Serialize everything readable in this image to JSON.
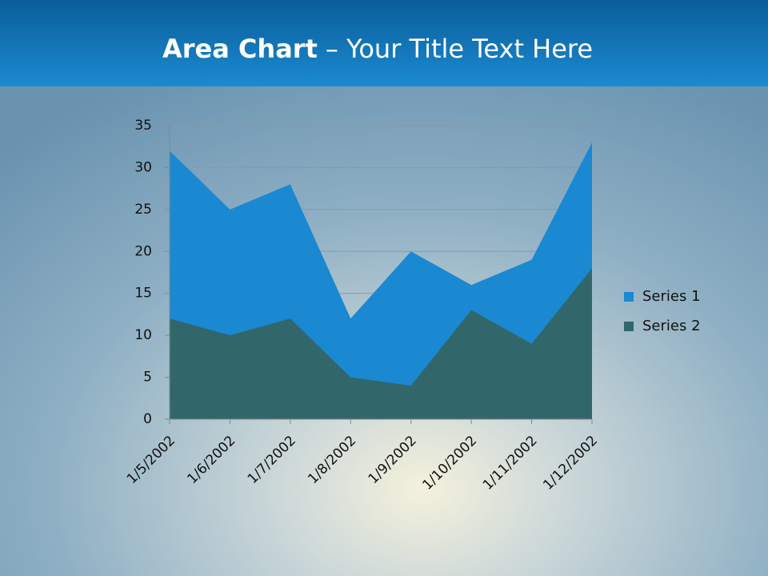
{
  "chart_data": {
    "type": "area",
    "title_parts": [
      "Area Chart",
      "– Your Title Text Here"
    ],
    "categories": [
      "1/5/2002",
      "1/6/2002",
      "1/7/2002",
      "1/8/2002",
      "1/9/2002",
      "1/10/2002",
      "1/11/2002",
      "1/12/2002"
    ],
    "series": [
      {
        "name": "Series 1",
        "color": "#1b88d2",
        "values": [
          32,
          25,
          28,
          12,
          20,
          16,
          19,
          33
        ]
      },
      {
        "name": "Series 2",
        "color": "#31676a",
        "values": [
          12,
          10,
          12,
          5,
          4,
          13,
          9,
          18
        ]
      }
    ],
    "ylim": [
      0,
      35
    ],
    "yticks": [
      0,
      5,
      10,
      15,
      20,
      25,
      30,
      35
    ],
    "grid": true,
    "legend": "right"
  }
}
